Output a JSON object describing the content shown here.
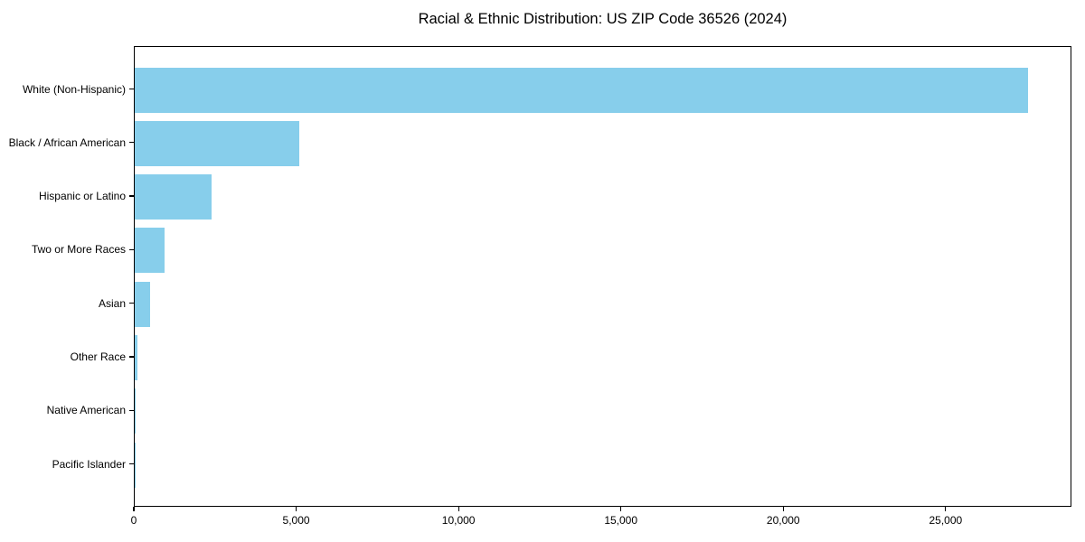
{
  "title": "Racial & Ethnic Distribution: US ZIP Code 36526 (2024)",
  "chart_data": {
    "type": "bar",
    "orientation": "horizontal",
    "title": "Racial & Ethnic Distribution: US ZIP Code 36526 (2024)",
    "categories": [
      "White (Non-Hispanic)",
      "Black / African American",
      "Hispanic or Latino",
      "Two or More Races",
      "Asian",
      "Other Race",
      "Native American",
      "Pacific Islander"
    ],
    "values": [
      27500,
      5070,
      2370,
      920,
      475,
      70,
      20,
      5
    ],
    "xlabel": "",
    "ylabel": "",
    "xlim": [
      0,
      28875
    ],
    "xticks": [
      0,
      5000,
      10000,
      15000,
      20000,
      25000
    ],
    "xtick_labels": [
      "0",
      "5,000",
      "10,000",
      "15,000",
      "20,000",
      "25,000"
    ],
    "bar_color": "#87CEEB",
    "axis_color": "#000000",
    "background_color": "#ffffff",
    "grid": false,
    "legend": "none"
  }
}
